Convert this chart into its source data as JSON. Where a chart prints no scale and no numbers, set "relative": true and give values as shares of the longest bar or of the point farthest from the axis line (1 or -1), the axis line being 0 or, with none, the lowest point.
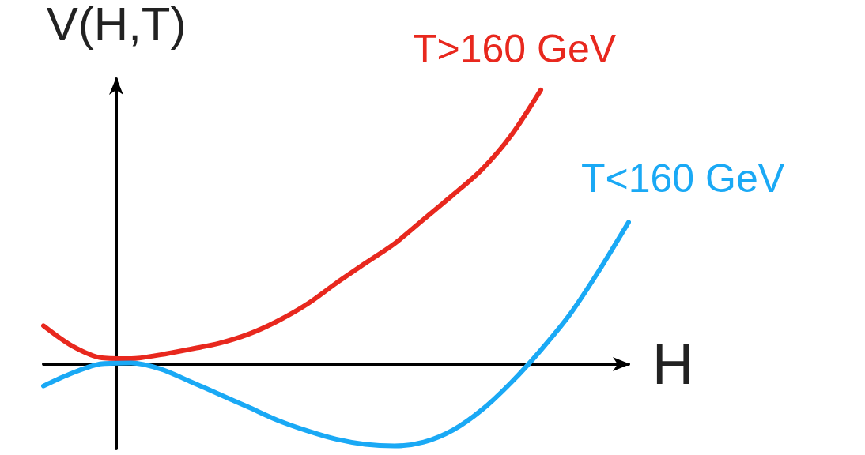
{
  "chart_data": {
    "type": "line",
    "relative": true,
    "xlabel": "H",
    "ylabel": "V(H,T)",
    "marker": "none",
    "categories": [
      null,
      null,
      null,
      null,
      null,
      null,
      null,
      null,
      null,
      null,
      null,
      null,
      null,
      null,
      null,
      null,
      null,
      null,
      null,
      null,
      null
    ],
    "series": [
      {
        "name": "T>160 GeV",
        "color": "#e8281e",
        "values": [
          0.139,
          0.064,
          0.022,
          0.019,
          0.033,
          0.053,
          0.075,
          0.108,
          0.156,
          0.217,
          0.294,
          0.367,
          0.439,
          0.528,
          0.617,
          0.711,
          0.836,
          1.0,
          null,
          null,
          null
        ]
      },
      {
        "name": "T<160 GeV",
        "color": "#1aa9f5",
        "values": [
          -0.081,
          -0.033,
          0,
          0.003,
          -0.019,
          -0.064,
          -0.111,
          -0.158,
          -0.206,
          -0.244,
          -0.275,
          -0.294,
          -0.3,
          -0.286,
          -0.242,
          -0.167,
          -0.067,
          0.05,
          0.181,
          0.342,
          0.517
        ]
      }
    ]
  }
}
